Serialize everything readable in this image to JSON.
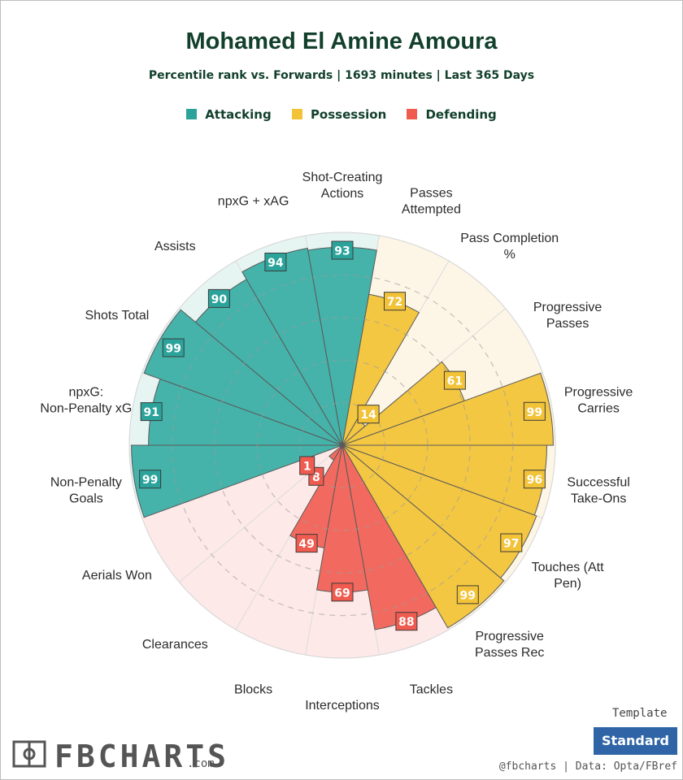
{
  "title": "Mohamed El Amine Amoura",
  "subtitle": "Percentile rank vs. Forwards | 1693 minutes | Last 365 Days",
  "legend": [
    {
      "label": "Attacking",
      "color": "#2ba39b"
    },
    {
      "label": "Possession",
      "color": "#f2c237"
    },
    {
      "label": "Defending",
      "color": "#ef5b4f"
    }
  ],
  "template": {
    "label": "Template",
    "button": "Standard"
  },
  "credit": "@fbcharts | Data: Opta/FBref",
  "logo": {
    "text": "FBCHARTS",
    "suffix": ".com"
  },
  "chart_data": {
    "type": "radar",
    "title": "Mohamed El Amine Amoura",
    "subtitle": "Percentile rank vs. Forwards | 1693 minutes | Last 365 Days",
    "range": [
      0,
      100
    ],
    "categories": [
      {
        "label": "Shot-Creating Actions",
        "value": 93,
        "group": "Attacking"
      },
      {
        "label": "Passes Attempted",
        "value": 72,
        "group": "Possession"
      },
      {
        "label": "Pass Completion %",
        "value": 14,
        "group": "Possession"
      },
      {
        "label": "Progressive Passes",
        "value": 61,
        "group": "Possession"
      },
      {
        "label": "Progressive Carries",
        "value": 99,
        "group": "Possession"
      },
      {
        "label": "Successful Take-Ons",
        "value": 96,
        "group": "Possession"
      },
      {
        "label": "Touches (Att Pen)",
        "value": 97,
        "group": "Possession"
      },
      {
        "label": "Progressive Passes Rec",
        "value": 99,
        "group": "Possession"
      },
      {
        "label": "Tackles",
        "value": 88,
        "group": "Defending"
      },
      {
        "label": "Interceptions",
        "value": 69,
        "group": "Defending"
      },
      {
        "label": "Blocks",
        "value": 49,
        "group": "Defending"
      },
      {
        "label": "Clearances",
        "value": 8,
        "group": "Defending"
      },
      {
        "label": "Aerials Won",
        "value": 1,
        "group": "Defending"
      },
      {
        "label": "Non-Penalty Goals",
        "value": 99,
        "group": "Attacking"
      },
      {
        "label": "npxG: Non-Penalty xG",
        "value": 91,
        "group": "Attacking"
      },
      {
        "label": "Shots Total",
        "value": 99,
        "group": "Attacking"
      },
      {
        "label": "Assists",
        "value": 90,
        "group": "Attacking"
      },
      {
        "label": "npxG + xAG",
        "value": 94,
        "group": "Attacking"
      }
    ],
    "group_colors": {
      "Attacking": {
        "fill": "#45b3aa",
        "background": "#e6f4f2",
        "badge": "#2ba39b"
      },
      "Possession": {
        "fill": "#f4c742",
        "background": "#fdf6e6",
        "badge": "#f2c237"
      },
      "Defending": {
        "fill": "#f26a5f",
        "background": "#fde9e8",
        "badge": "#ef5b4f"
      }
    }
  }
}
